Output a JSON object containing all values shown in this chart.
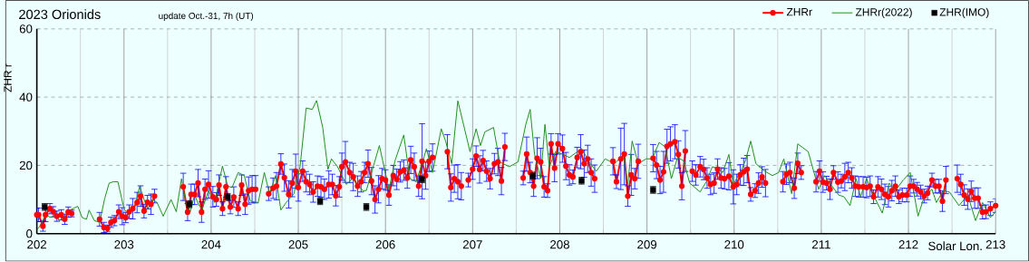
{
  "chart_data": {
    "type": "line",
    "title": "2023 Orionids",
    "subtitle": "update Oct.-31, 7h (UT)",
    "xlabel": "Solar Lon.",
    "ylabel": "ZHR r",
    "xlim": [
      202,
      213
    ],
    "xticks": [
      202,
      203,
      204,
      205,
      206,
      207,
      208,
      209,
      210,
      211,
      212,
      213
    ],
    "ylim": [
      0,
      60
    ],
    "yticks": [
      0,
      20,
      40,
      60
    ],
    "grid": true,
    "legend": "top right",
    "series": [
      {
        "name": "ZHRr",
        "type": "line",
        "color": "#ff0000",
        "marker": "circle",
        "line_style": "solid",
        "x": [
          202.0,
          202.02,
          202.07,
          202.1,
          202.15,
          202.19,
          202.23,
          202.28,
          202.32,
          202.36,
          202.4,
          202.55,
          202.72,
          202.77,
          202.81,
          202.85,
          202.89,
          202.94,
          202.98,
          203.02,
          203.06,
          203.1,
          203.15,
          203.19,
          203.23,
          203.27,
          203.31,
          203.35,
          203.5,
          203.68,
          203.73,
          203.77,
          203.81,
          203.85,
          203.89,
          203.93,
          203.97,
          204.02,
          204.06,
          204.09,
          204.13,
          204.17,
          204.22,
          204.26,
          204.31,
          204.35,
          204.39,
          204.43,
          204.47,
          204.51,
          204.58,
          204.66,
          204.71,
          204.75,
          204.8,
          204.84,
          204.89,
          204.93,
          204.97,
          205.0,
          205.05,
          205.09,
          205.13,
          205.17,
          205.22,
          205.26,
          205.3,
          205.35,
          205.39,
          205.43,
          205.47,
          205.5,
          205.54,
          205.59,
          205.63,
          205.68,
          205.72,
          205.76,
          205.8,
          205.84,
          205.88,
          205.92,
          205.96,
          206.0,
          206.04,
          206.09,
          206.13,
          206.17,
          206.21,
          206.25,
          206.29,
          206.33,
          206.38,
          206.42,
          206.46,
          206.5,
          206.54,
          206.62,
          206.71,
          206.75,
          206.79,
          206.83,
          206.87,
          206.91,
          206.95,
          207.0,
          207.04,
          207.08,
          207.12,
          207.16,
          207.2,
          207.25,
          207.29,
          207.33,
          207.37,
          207.48,
          207.58,
          207.62,
          207.66,
          207.7,
          207.74,
          207.78,
          207.82,
          207.86,
          207.9,
          207.94,
          207.98,
          208.03,
          208.07,
          208.11,
          208.15,
          208.2,
          208.24,
          208.28,
          208.32,
          208.36,
          208.4,
          208.5,
          208.61,
          208.65,
          208.7,
          208.74,
          208.78,
          208.82,
          208.86,
          208.9,
          208.98,
          209.07,
          209.11,
          209.15,
          209.19,
          209.23,
          209.27,
          209.32,
          209.36,
          209.4,
          209.44,
          209.48,
          209.52,
          209.56,
          209.61,
          209.65,
          209.69,
          209.73,
          209.77,
          209.81,
          209.85,
          209.89,
          209.94,
          209.99,
          210.03,
          210.07,
          210.11,
          210.15,
          210.19,
          210.24,
          210.28,
          210.32,
          210.36,
          210.46,
          210.56,
          210.6,
          210.64,
          210.69,
          210.73,
          210.77,
          210.86,
          210.94,
          210.98,
          211.02,
          211.06,
          211.1,
          211.14,
          211.19,
          211.23,
          211.27,
          211.31,
          211.35,
          211.39,
          211.43,
          211.48,
          211.52,
          211.56,
          211.6,
          211.65,
          211.69,
          211.73,
          211.77,
          211.81,
          211.85,
          211.89,
          211.93,
          211.98,
          212.02,
          212.06,
          212.1,
          212.14,
          212.18,
          212.22,
          212.27,
          212.31,
          212.35,
          212.39,
          212.43,
          212.5,
          212.56,
          212.6,
          212.64,
          212.68,
          212.72,
          212.76,
          212.8,
          212.85,
          212.89,
          212.94,
          213.0
        ],
        "values": [
          5.5,
          5.5,
          2.2,
          5.5,
          7.3,
          6.4,
          5.1,
          5.5,
          4.2,
          6.3,
          5.9,
          null,
          4.2,
          1.8,
          1.5,
          3.3,
          3.8,
          6.4,
          5.1,
          4.7,
          6.4,
          7.3,
          9.1,
          11,
          6.6,
          9.2,
          8.6,
          11,
          null,
          13.7,
          6.3,
          11.5,
          11.5,
          14.8,
          6.3,
          13,
          14.4,
          10.8,
          10,
          14.2,
          7.3,
          13.7,
          7.8,
          10.7,
          7.3,
          14.2,
          8.6,
          12.6,
          13,
          13,
          null,
          11.7,
          13.3,
          13.9,
          20.4,
          16.4,
          11.5,
          14.8,
          18.3,
          13.5,
          18.3,
          15.2,
          14.4,
          12.2,
          13.9,
          13.7,
          13,
          14.4,
          14.4,
          11.1,
          13.7,
          19.6,
          21,
          17.9,
          16.6,
          13.9,
          15.2,
          17.9,
          20.5,
          15.4,
          10,
          13,
          16.1,
          15.7,
          11.3,
          17,
          15.9,
          18.1,
          18.6,
          16.3,
          21.6,
          19.6,
          13.9,
          21.2,
          17,
          21.2,
          22.3,
          null,
          24,
          13.5,
          16.1,
          15.2,
          13.9,
          null,
          15.7,
          18.9,
          22.7,
          18.8,
          21.4,
          18.3,
          16.1,
          20.5,
          21,
          15.4,
          25.4,
          null,
          16.3,
          23.3,
          17.9,
          13.9,
          22.1,
          21,
          13.7,
          12.6,
          26.3,
          19.2,
          26.3,
          24.9,
          19.8,
          17.2,
          16.6,
          22.3,
          24,
          20.5,
          21.9,
          17.9,
          16.1,
          null,
          21.2,
          15.2,
          21.9,
          23.3,
          11,
          17.2,
          16.1,
          21.2,
          null,
          22.1,
          20.1,
          15.7,
          18.1,
          25.6,
          26.3,
          26.9,
          23.2,
          13.9,
          24.2,
          null,
          18.3,
          17.2,
          19.6,
          18.8,
          16.3,
          14.4,
          14.8,
          18.9,
          16.3,
          16.1,
          16.8,
          13.7,
          14.4,
          17.2,
          18.1,
          18.9,
          11.5,
          12.6,
          14.8,
          16.6,
          14.8,
          null,
          15.2,
          17.4,
          17.9,
          13.3,
          20.6,
          17.9,
          null,
          15.2,
          18.3,
          15.1,
          14.8,
          13,
          17.9,
          15.1,
          15.4,
          16.6,
          17.9,
          16.3,
          13.9,
          13.7,
          13.7,
          13.5,
          13.9,
          10.8,
          13.7,
          13,
          11.5,
          10.8,
          12.6,
          13.9,
          10.8,
          11.3,
          11.3,
          13.9,
          13.9,
          13,
          12.2,
          11,
          11.9,
          15.7,
          13.9,
          13.9,
          9.5,
          15.7,
          null,
          16.1,
          14.4,
          11.3,
          10.1,
          12.4,
          10.4,
          10.4,
          6.3,
          6.4,
          7.3,
          8.2
        ],
        "errors": [
          2,
          2,
          1.5,
          2,
          1.5,
          1.5,
          1.5,
          1.5,
          1.5,
          1.5,
          1,
          null,
          2,
          1.5,
          1,
          1.5,
          1.5,
          2,
          2.5,
          1.5,
          2,
          3,
          3,
          3,
          2,
          2,
          3,
          2,
          null,
          4,
          2.5,
          3,
          3,
          4,
          3,
          3,
          4,
          3,
          2,
          3,
          2,
          3,
          2,
          3,
          2,
          3,
          3,
          4,
          4,
          4,
          null,
          2,
          3,
          4,
          3,
          4,
          4,
          4,
          5,
          4,
          3,
          3,
          3,
          3,
          3,
          3,
          3,
          4,
          3,
          3,
          3,
          4,
          6,
          3,
          4,
          3,
          3,
          3,
          4,
          4,
          4,
          4,
          3,
          3,
          3,
          3,
          3,
          3,
          3,
          3,
          4,
          4,
          3,
          11,
          4,
          3,
          4,
          null,
          5,
          4,
          4,
          5,
          4,
          null,
          2,
          3,
          3,
          4,
          3,
          3,
          3,
          3,
          4,
          4,
          4,
          null,
          2,
          5,
          3,
          3,
          6,
          4,
          3,
          2,
          3,
          4,
          3,
          4,
          4,
          3,
          2,
          3,
          5,
          4,
          4,
          4,
          4,
          null,
          4,
          2,
          9,
          9,
          3,
          6,
          3,
          5,
          null,
          4,
          4,
          4,
          6,
          5,
          5,
          5,
          4,
          4,
          6,
          null,
          3,
          3,
          3,
          3,
          3,
          3,
          3,
          3,
          3,
          3,
          4,
          5,
          3,
          3,
          4,
          4,
          2,
          2,
          3,
          3,
          4,
          null,
          3,
          3,
          3,
          3,
          3,
          2,
          null,
          3,
          3,
          3,
          2,
          3,
          2,
          3,
          2,
          4,
          3,
          3,
          3,
          3,
          3,
          3,
          3,
          2,
          3,
          3,
          3,
          3,
          3,
          3,
          2,
          2,
          2,
          3,
          2,
          2,
          2,
          2,
          2,
          2,
          2,
          2,
          3,
          4,
          null,
          4,
          3,
          3,
          3,
          3,
          3,
          3,
          2,
          2,
          2,
          2
        ]
      },
      {
        "name": "ZHRr(2022)",
        "color": "#1f8f1f",
        "marker": "none",
        "line_style": "solid",
        "x": [
          202.0,
          202.03,
          202.1,
          202.16,
          202.21,
          202.26,
          202.33,
          202.38,
          202.47,
          202.52,
          202.57,
          202.6,
          202.66,
          202.72,
          202.78,
          202.83,
          202.88,
          202.93,
          203.0,
          203.05,
          203.12,
          203.18,
          203.23,
          203.28,
          203.33,
          203.38,
          203.45,
          203.54,
          203.6,
          203.66,
          203.71,
          203.76,
          203.81,
          203.86,
          203.9,
          203.97,
          204.04,
          204.13,
          204.19,
          204.24,
          204.31,
          204.38,
          204.45,
          204.54,
          204.61,
          204.67,
          204.74,
          204.8,
          204.86,
          204.95,
          205.02,
          205.09,
          205.16,
          205.21,
          205.28,
          205.34,
          205.38,
          205.45,
          205.5,
          205.55,
          205.62,
          205.74,
          205.78,
          205.93,
          206.04,
          206.11,
          206.21,
          206.28,
          206.35,
          206.42,
          206.47,
          206.54,
          206.64,
          206.69,
          206.76,
          206.83,
          206.9,
          206.97,
          207.04,
          207.09,
          207.14,
          207.24,
          207.31,
          207.42,
          207.52,
          207.61,
          207.66,
          207.71,
          207.78,
          207.83,
          207.88,
          207.95,
          208.04,
          208.11,
          208.25,
          208.35,
          208.42,
          208.52,
          208.63,
          208.73,
          208.78,
          208.83,
          208.9,
          208.99,
          209.06,
          209.14,
          209.21,
          209.28,
          209.35,
          209.42,
          209.49,
          209.61,
          209.68,
          209.75,
          209.8,
          209.87,
          209.94,
          209.99,
          210.07,
          210.13,
          210.19,
          210.25,
          210.35,
          210.44,
          210.51,
          210.57,
          210.66,
          210.73,
          210.85,
          210.97,
          211.04,
          211.11,
          211.2,
          211.26,
          211.33,
          211.4,
          211.45,
          211.52,
          211.59,
          211.7,
          211.78,
          211.85,
          211.94,
          212.02,
          212.11,
          212.18,
          212.27,
          212.32,
          212.4,
          212.47,
          212.58,
          212.68,
          212.77,
          212.85,
          212.94,
          213.0
        ],
        "values": [
          1.1,
          2,
          5.5,
          4.7,
          5.5,
          3.8,
          5.5,
          6.9,
          8,
          4.7,
          4.2,
          6.9,
          3.8,
          3.3,
          10.4,
          14.8,
          15.2,
          15.2,
          7.3,
          5.5,
          7.3,
          13.9,
          10,
          7.3,
          10,
          9.1,
          5.1,
          10,
          6.4,
          16.1,
          9.1,
          6.4,
          11.3,
          8.2,
          7.3,
          12.6,
          9.1,
          19.8,
          13.9,
          13.5,
          17.9,
          17,
          9.5,
          9.1,
          17.9,
          11.7,
          17,
          6.9,
          9.1,
          11.7,
          19.6,
          36.8,
          36.4,
          39,
          31.1,
          18.8,
          21.9,
          19.6,
          17,
          14.4,
          16.1,
          12.6,
          12.6,
          25.8,
          13,
          21.4,
          28.9,
          16.1,
          15.2,
          20.5,
          24.9,
          17.9,
          30.7,
          27.1,
          20.5,
          38.9,
          31.5,
          24,
          30.7,
          25.8,
          29.8,
          31.1,
          21,
          19.6,
          21,
          32,
          36.4,
          23.2,
          16.1,
          32,
          19.6,
          24,
          23.2,
          22.3,
          24.9,
          20.5,
          18.3,
          21.9,
          20.5,
          23.2,
          14.4,
          27.1,
          20.5,
          21.9,
          21.9,
          26.7,
          25.4,
          16.1,
          22.3,
          21.4,
          14.8,
          12.2,
          15.2,
          19.6,
          19.2,
          17.9,
          23.2,
          14.4,
          17.9,
          21.4,
          27.1,
          20.5,
          18.3,
          17,
          17.9,
          21.9,
          11.7,
          26.3,
          24,
          13,
          17,
          14.4,
          11.3,
          10.8,
          8.2,
          16.1,
          10.8,
          16.1,
          11.7,
          6,
          14.8,
          12.6,
          15.7,
          17.9,
          5.1,
          10.8,
          13,
          9.1,
          12.6,
          12.2,
          8.2,
          11.3,
          3.8,
          9.1,
          4.7,
          6.4
        ]
      },
      {
        "name": "ZHR(IMO)",
        "type": "scatter",
        "color": "#000000",
        "marker": "square",
        "x": [
          202.09,
          203.75,
          204.19,
          205.25,
          205.78,
          206.42,
          207.69,
          208.25,
          209.07
        ],
        "values": [
          7.8,
          8.6,
          10.7,
          9.5,
          7.8,
          15.9,
          17,
          15.5,
          12.8
        ],
        "errors": [
          1,
          1,
          1,
          1,
          1,
          1,
          1,
          1,
          1
        ]
      }
    ]
  }
}
